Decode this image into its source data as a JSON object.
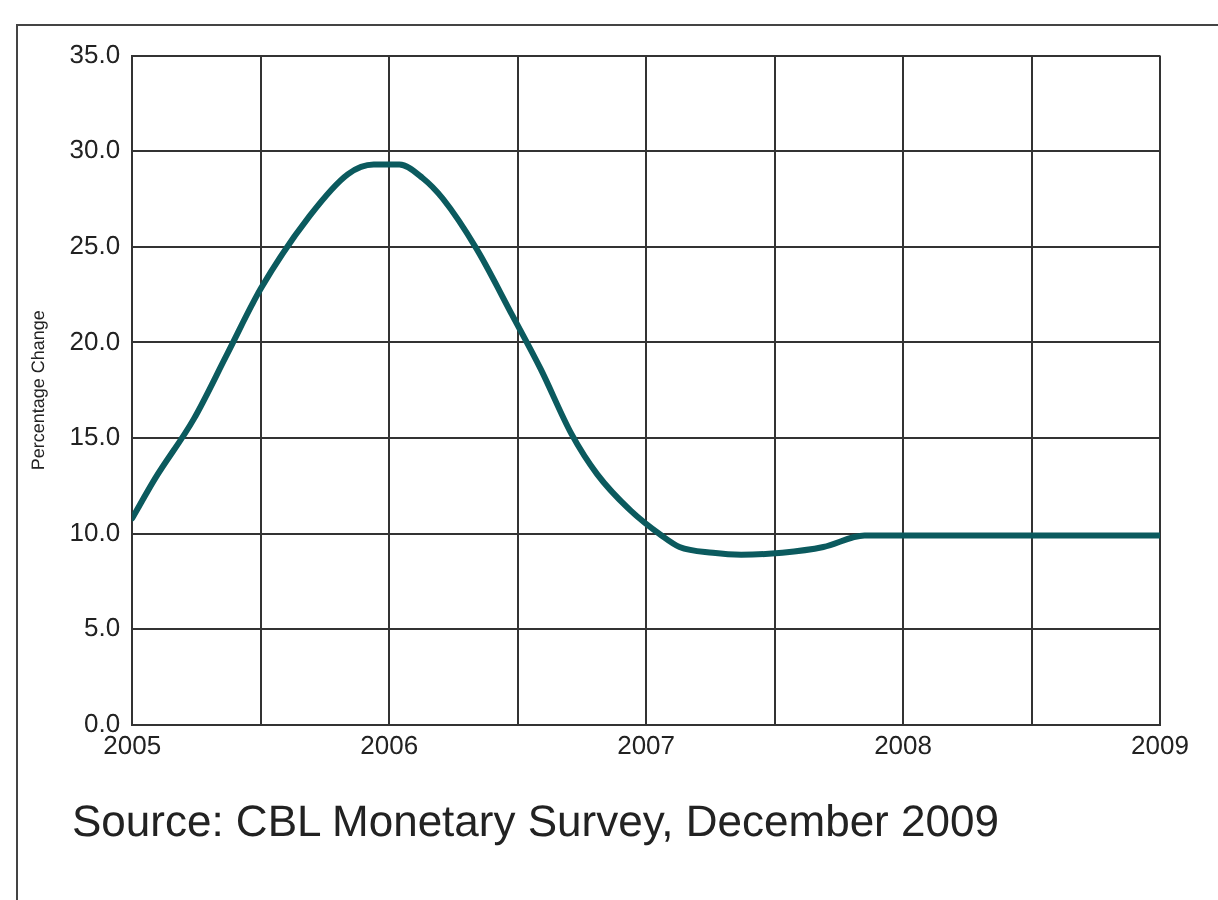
{
  "chart_data": {
    "type": "line",
    "ylabel": "Percentage Change",
    "annotations": [
      "Source: CBL Monetary Survey, December 2009"
    ],
    "series": [
      {
        "color": "#0b5a5e",
        "x": [
          2005.0,
          2005.09,
          2005.24,
          2005.37,
          2005.5,
          2005.69,
          2005.84,
          2005.94,
          2006.04,
          2006.13,
          2006.21,
          2006.34,
          2006.48,
          2006.59,
          2006.71,
          2006.81,
          2006.94,
          2007.06,
          2007.13,
          2007.26,
          2007.37,
          2007.53,
          2007.69,
          2007.85,
          2008.0,
          2008.5,
          2009.0
        ],
        "values": [
          10.8,
          12.9,
          16.0,
          19.4,
          22.8,
          26.6,
          28.8,
          29.3,
          29.3,
          28.6,
          27.5,
          24.9,
          21.4,
          18.6,
          15.2,
          13.1,
          11.2,
          9.9,
          9.3,
          9.0,
          8.9,
          9.0,
          9.3,
          9.9,
          9.9,
          9.9,
          9.9
        ]
      }
    ],
    "xlim": [
      2005,
      2009
    ],
    "xticks": [
      2005,
      {
        "value": 2005.5,
        "label": null
      },
      2006,
      {
        "value": 2006.5,
        "label": null
      },
      2007,
      {
        "value": 2007.5,
        "label": null
      },
      2008,
      {
        "value": 2008.5,
        "label": null
      },
      2009
    ],
    "ylim": [
      0,
      35
    ],
    "yticks": [
      {
        "value": 0,
        "label": "0.0"
      },
      {
        "value": 5,
        "label": "5.0"
      },
      {
        "value": 10,
        "label": "10.0"
      },
      {
        "value": 15,
        "label": "15.0"
      },
      {
        "value": 20,
        "label": "20.0"
      },
      {
        "value": 25,
        "label": "25.0"
      },
      {
        "value": 30,
        "label": "30.0"
      },
      {
        "value": 35,
        "label": "35.0"
      }
    ],
    "grid": true,
    "legend": false,
    "marker": "none",
    "line_style": "solid"
  }
}
